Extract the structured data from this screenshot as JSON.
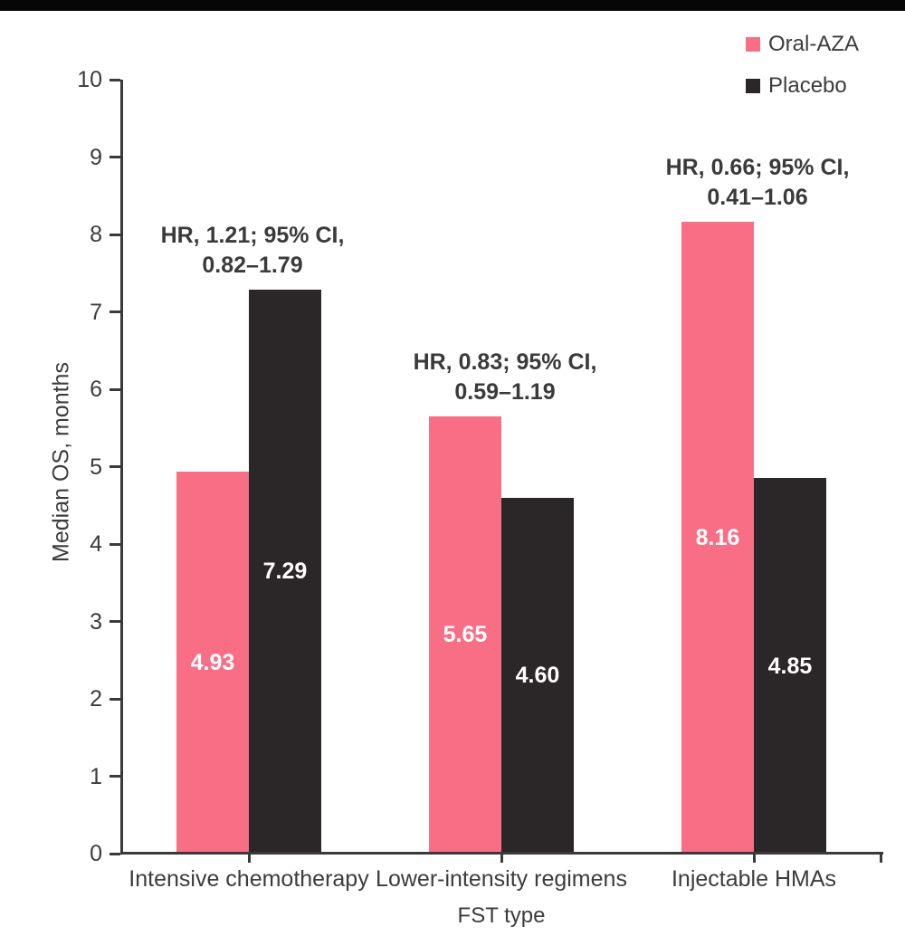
{
  "banner": {
    "color": "#060606"
  },
  "legend": {
    "items": [
      {
        "label": "Oral-AZA",
        "color": "#f86e85"
      },
      {
        "label": "Placebo",
        "color": "#2b2628"
      }
    ]
  },
  "chart_data": {
    "type": "bar",
    "title": "",
    "xlabel": "FST type",
    "ylabel": "Median OS, months",
    "ylim": [
      0,
      10
    ],
    "yticks": [
      0,
      1,
      2,
      3,
      4,
      5,
      6,
      7,
      8,
      9,
      10
    ],
    "grid": false,
    "legend_position": "top-right",
    "categories": [
      "Intensive chemotherapy",
      "Lower-intensity regimens",
      "Injectable HMAs"
    ],
    "series": [
      {
        "name": "Oral-AZA",
        "color": "#f86e85",
        "values": [
          4.93,
          5.65,
          8.16
        ],
        "value_labels": [
          "4.93",
          "5.65",
          "8.16"
        ]
      },
      {
        "name": "Placebo",
        "color": "#2b2628",
        "values": [
          7.29,
          4.6,
          4.85
        ],
        "value_labels": [
          "7.29",
          "4.60",
          "4.85"
        ]
      }
    ],
    "annotations": [
      {
        "lines": [
          "HR, 1.21; 95% CI,",
          "0.82–1.79"
        ]
      },
      {
        "lines": [
          "HR, 0.83; 95% CI,",
          "0.59–1.19"
        ]
      },
      {
        "lines": [
          "HR, 0.66; 95% CI,",
          "0.41–1.06"
        ]
      }
    ],
    "axis_color": "#3a3a3a",
    "text_color": "#3c3c3c"
  }
}
